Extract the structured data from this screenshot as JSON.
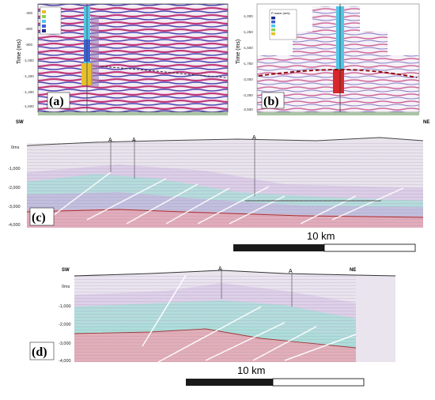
{
  "panel_a": {
    "label": "(a)",
    "ylabel": "Time (ms)",
    "ticks": [
      "-400",
      "-600",
      "-800",
      "-1,000",
      "-1,200",
      "-1,400",
      "-1,600"
    ]
  },
  "panel_b": {
    "label": "(b)",
    "ylabel": "Time (ms)",
    "ticks": [
      "-1,000",
      "-1,250",
      "-1,500",
      "-1,750",
      "-2,000",
      "-2,250",
      "-2,500"
    ],
    "legend_title": "P-wave (m/s)"
  },
  "panel_c": {
    "label": "(c)",
    "left_dir": "SW",
    "right_dir": "NE",
    "ticks": [
      "0ms",
      "-1,000",
      "-2,000",
      "-3,000",
      "-4,000"
    ],
    "scale": "10 km",
    "wells": [
      "A",
      "A",
      "A"
    ]
  },
  "panel_d": {
    "label": "(d)",
    "left_dir": "SW",
    "right_dir": "NE",
    "ticks": [
      "0ms",
      "-1,000",
      "-2,000",
      "-3,000",
      "-4,000"
    ],
    "scale": "10 km",
    "wells": [
      "A",
      "A"
    ]
  },
  "colors": {
    "seismic_red": "#c83a5a",
    "seismic_blue": "#5a4aa8",
    "cyan_layer": "#7fd6d0",
    "pink_layer": "#e89aa8",
    "purple_layer": "#c9a8e0",
    "horizon": "#8b0000"
  }
}
